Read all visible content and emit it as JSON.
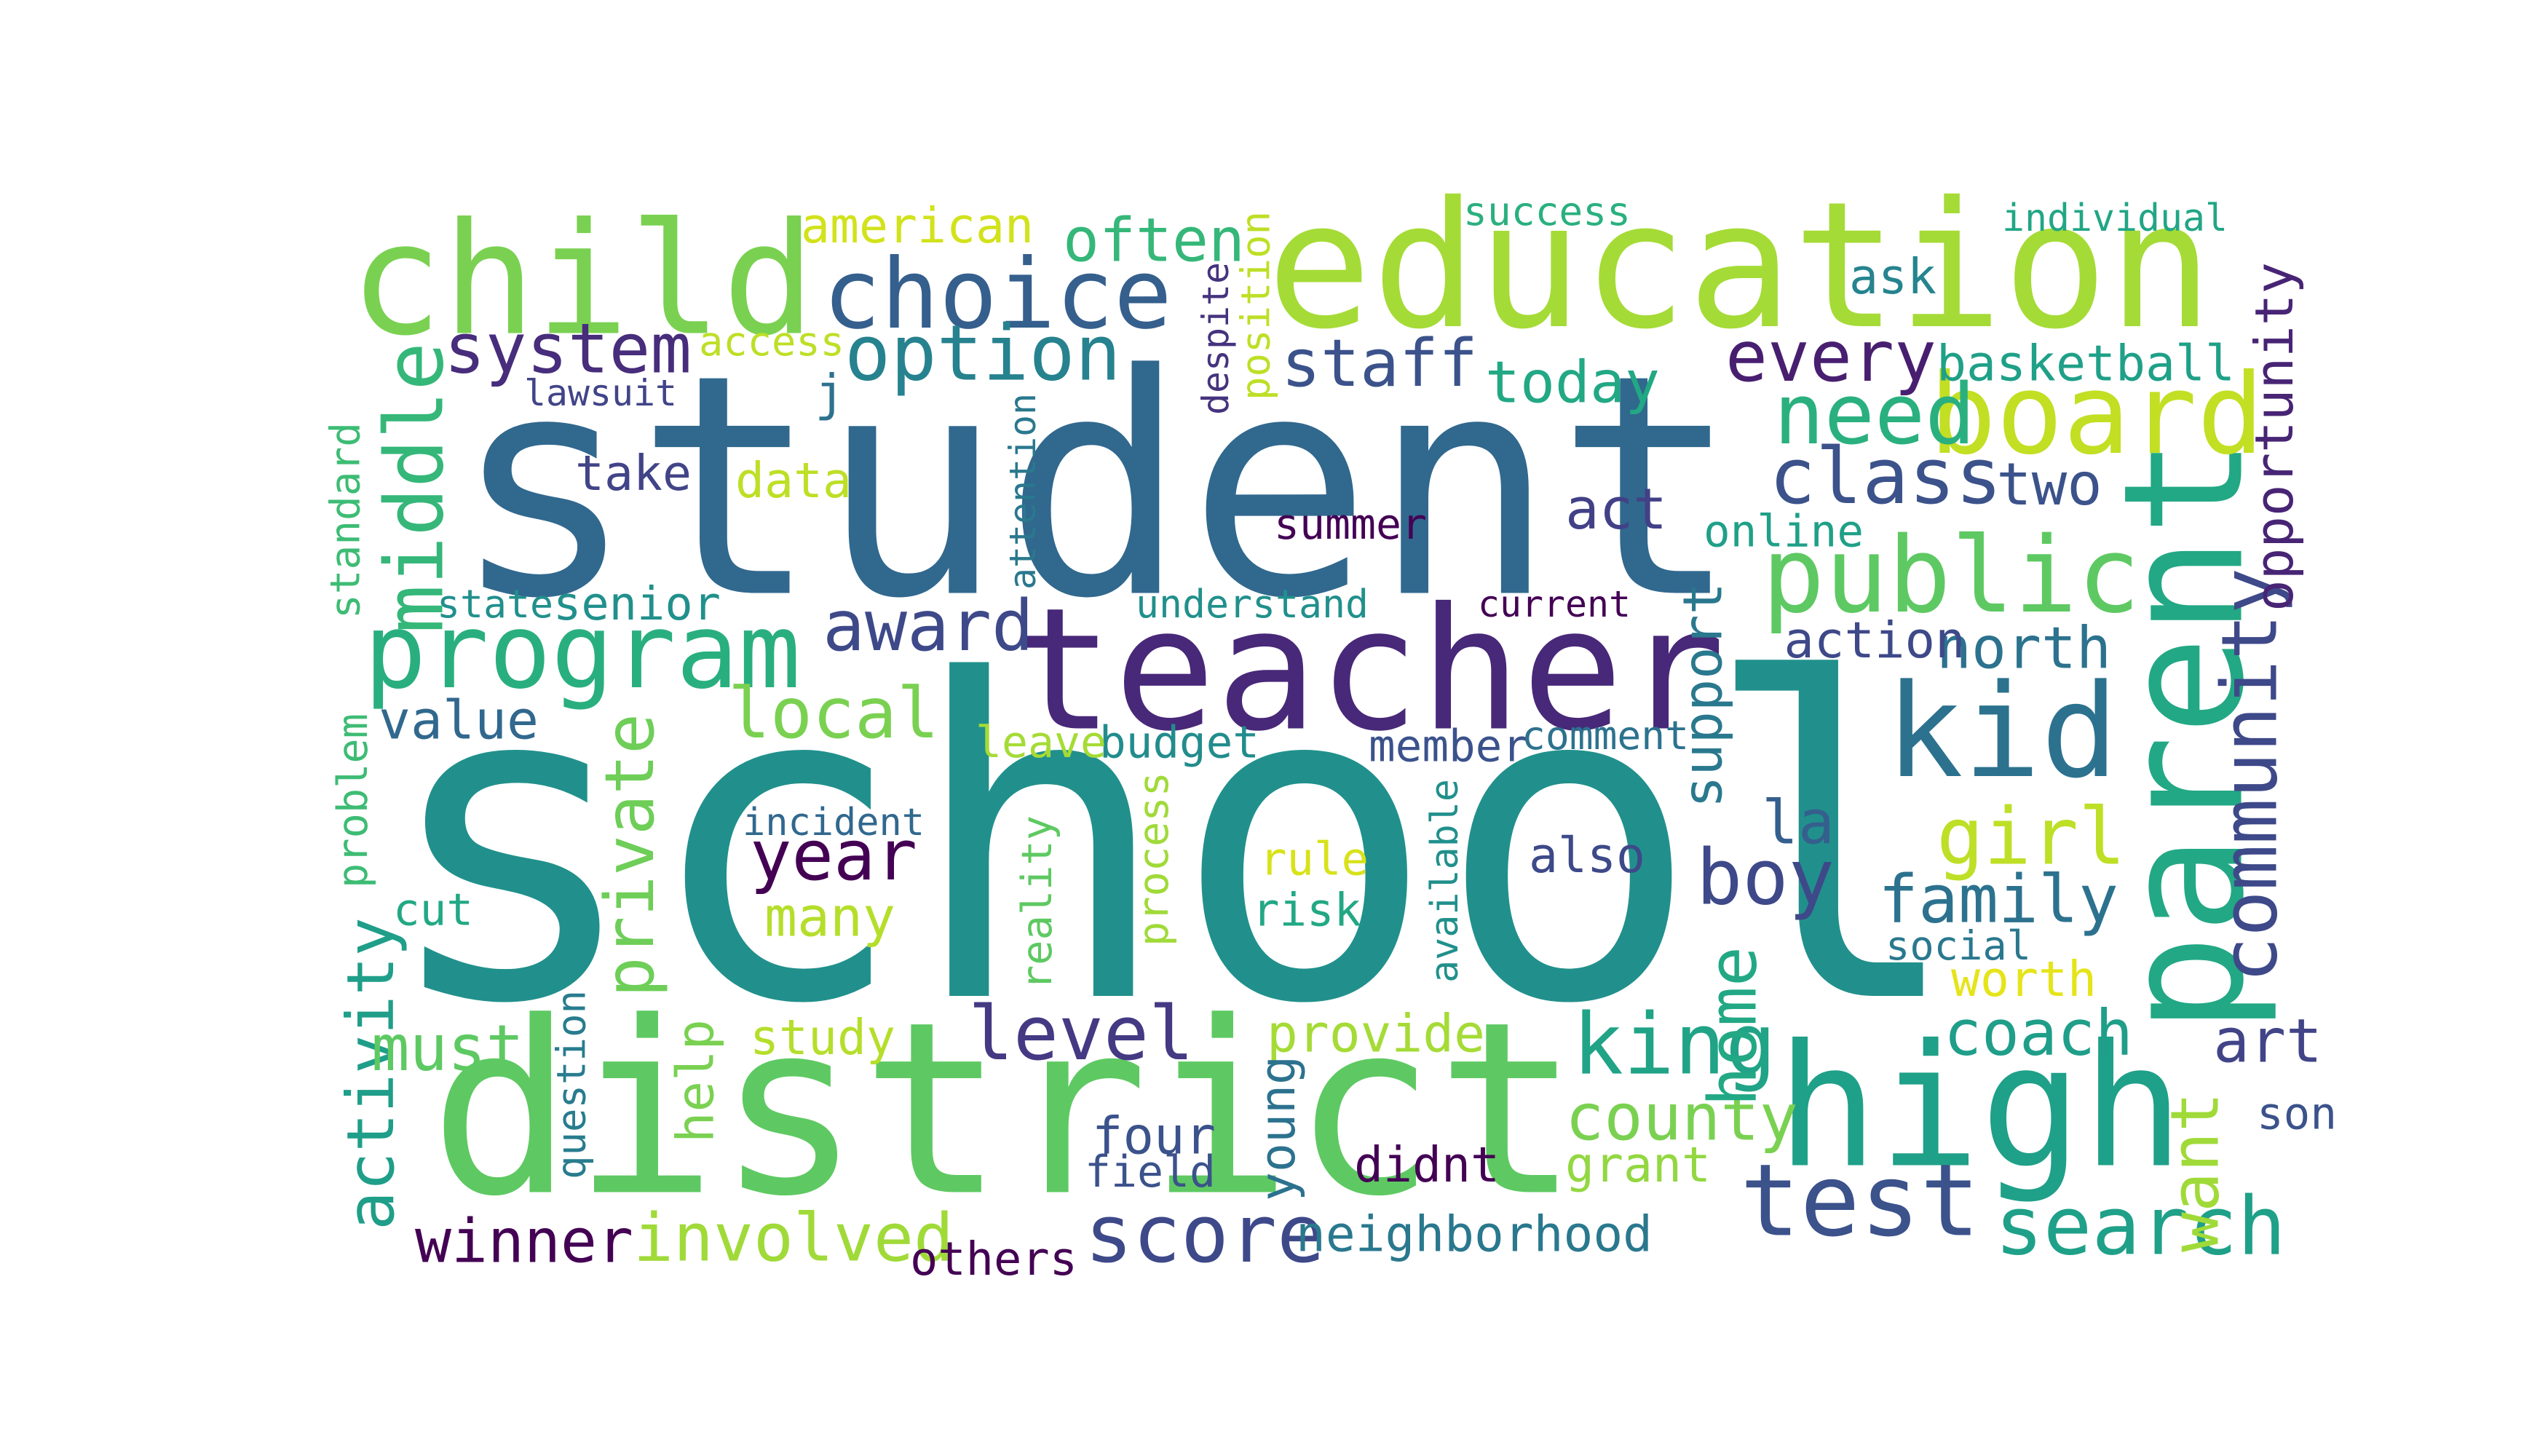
{
  "words": [
    {
      "text": "school",
      "color": "#21908c"
    },
    {
      "text": "student",
      "color": "#31688e"
    },
    {
      "text": "district",
      "color": "#5ec962"
    },
    {
      "text": "education",
      "color": "#a5db36"
    },
    {
      "text": "teacher",
      "color": "#482878"
    },
    {
      "text": "parent",
      "color": "#22a884"
    },
    {
      "text": "high",
      "color": "#1fa088"
    },
    {
      "text": "child",
      "color": "#7ad151"
    },
    {
      "text": "board",
      "color": "#c2df23"
    },
    {
      "text": "kid",
      "color": "#2c728e"
    },
    {
      "text": "public",
      "color": "#5ec962"
    },
    {
      "text": "program",
      "color": "#29af7f"
    },
    {
      "text": "choice",
      "color": "#355f8d"
    },
    {
      "text": "test",
      "color": "#3b528b"
    },
    {
      "text": "search",
      "color": "#1fa088"
    },
    {
      "text": "option",
      "color": "#26828e"
    },
    {
      "text": "community",
      "color": "#3e4989"
    },
    {
      "text": "middle",
      "color": "#35b779"
    },
    {
      "text": "private",
      "color": "#6ece58"
    },
    {
      "text": "activity",
      "color": "#1f9e89"
    },
    {
      "text": "boy",
      "color": "#3e4989"
    },
    {
      "text": "level",
      "color": "#443983"
    },
    {
      "text": "king",
      "color": "#20a386"
    },
    {
      "text": "year",
      "color": "#440154"
    },
    {
      "text": "system",
      "color": "#472d7b"
    },
    {
      "text": "class",
      "color": "#3b528b"
    },
    {
      "text": "local",
      "color": "#7ad151"
    },
    {
      "text": "girl",
      "color": "#bddf26"
    },
    {
      "text": "county",
      "color": "#7ad151"
    },
    {
      "text": "family",
      "color": "#2c728e"
    },
    {
      "text": "staff",
      "color": "#3b528b"
    },
    {
      "text": "award",
      "color": "#3e4989"
    },
    {
      "text": "score",
      "color": "#3e4989"
    },
    {
      "text": "art",
      "color": "#414487"
    },
    {
      "text": "must",
      "color": "#5ec962"
    },
    {
      "text": "often",
      "color": "#35b779"
    },
    {
      "text": "every",
      "color": "#481f70"
    },
    {
      "text": "need",
      "color": "#2ab07f"
    },
    {
      "text": "support",
      "color": "#2a788e"
    },
    {
      "text": "involved",
      "color": "#a0da39"
    },
    {
      "text": "winner",
      "color": "#440154"
    },
    {
      "text": "four",
      "color": "#3b528b"
    },
    {
      "text": "north",
      "color": "#2c728e"
    },
    {
      "text": "la",
      "color": "#355f8d"
    },
    {
      "text": "neighborhood",
      "color": "#2a788e"
    },
    {
      "text": "want",
      "color": "#a0da39"
    },
    {
      "text": "american",
      "color": "#d2e21b"
    },
    {
      "text": "today",
      "color": "#22a884"
    },
    {
      "text": "basketball",
      "color": "#1fa088"
    },
    {
      "text": "many",
      "color": "#b5de2b"
    },
    {
      "text": "value",
      "color": "#31688e"
    },
    {
      "text": "coach",
      "color": "#1f9e89"
    },
    {
      "text": "home",
      "color": "#22a884"
    },
    {
      "text": "budget",
      "color": "#228c8d"
    },
    {
      "text": "despite",
      "color": "#46337e"
    },
    {
      "text": "grant",
      "color": "#93d741"
    },
    {
      "text": "provide",
      "color": "#a5db36"
    },
    {
      "text": "didnt",
      "color": "#440154"
    },
    {
      "text": "study",
      "color": "#b5de2b"
    },
    {
      "text": "act",
      "color": "#424086"
    },
    {
      "text": "also",
      "color": "#3e4989"
    },
    {
      "text": "member",
      "color": "#3b528b"
    },
    {
      "text": "two",
      "color": "#3b528b"
    },
    {
      "text": "worth",
      "color": "#e5e419"
    },
    {
      "text": "summer",
      "color": "#440154"
    },
    {
      "text": "current",
      "color": "#440154"
    },
    {
      "text": "online",
      "color": "#1fa088"
    },
    {
      "text": "action",
      "color": "#3e4989"
    },
    {
      "text": "opportunity",
      "color": "#482475"
    },
    {
      "text": "position",
      "color": "#bddf26"
    },
    {
      "text": "success",
      "color": "#2ab07f"
    },
    {
      "text": "individual",
      "color": "#21a685"
    },
    {
      "text": "ask",
      "color": "#25848e"
    },
    {
      "text": "access",
      "color": "#bddf26"
    },
    {
      "text": "j",
      "color": "#2c728e"
    },
    {
      "text": "lawsuit",
      "color": "#414487"
    },
    {
      "text": "take",
      "color": "#414487"
    },
    {
      "text": "data",
      "color": "#bddf26"
    },
    {
      "text": "attention",
      "color": "#2a788e"
    },
    {
      "text": "standard",
      "color": "#3dbc74"
    },
    {
      "text": "state",
      "color": "#21908c"
    },
    {
      "text": "senior",
      "color": "#21908c"
    },
    {
      "text": "understand",
      "color": "#21908c"
    },
    {
      "text": "comment",
      "color": "#2c728e"
    },
    {
      "text": "leave",
      "color": "#a5db36"
    },
    {
      "text": "incident",
      "color": "#31688e"
    },
    {
      "text": "problem",
      "color": "#3dbc74"
    },
    {
      "text": "cut",
      "color": "#22a884"
    },
    {
      "text": "reality",
      "color": "#5ec962"
    },
    {
      "text": "process",
      "color": "#a0da39"
    },
    {
      "text": "rule",
      "color": "#d8e219"
    },
    {
      "text": "risk",
      "color": "#22a884"
    },
    {
      "text": "available",
      "color": "#21908c"
    },
    {
      "text": "social",
      "color": "#2a788e"
    },
    {
      "text": "help",
      "color": "#7ad151"
    },
    {
      "text": "question",
      "color": "#287c8e"
    },
    {
      "text": "young",
      "color": "#2c728e"
    },
    {
      "text": "field",
      "color": "#3b528b"
    },
    {
      "text": "others",
      "color": "#440154"
    },
    {
      "text": "son",
      "color": "#3b528b"
    }
  ]
}
